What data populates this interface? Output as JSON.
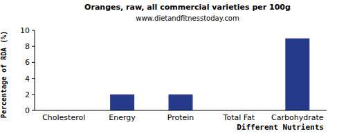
{
  "chart_data": {
    "type": "bar",
    "title": "Oranges, raw, all commercial varieties per 100g",
    "subtitle": "www.dietandfitnesstoday.com",
    "x_label": "Different Nutrients",
    "y_label": "Percentage of RDA (%)",
    "categories": [
      "Cholesterol",
      "Energy",
      "Protein",
      "Total Fat",
      "Carbohydrate"
    ],
    "values": [
      0,
      2,
      2,
      0,
      9
    ],
    "color": "#263a8a",
    "ylim": [
      0,
      10
    ],
    "yticks": [
      0,
      2,
      4,
      6,
      8,
      10
    ],
    "grid": false
  }
}
